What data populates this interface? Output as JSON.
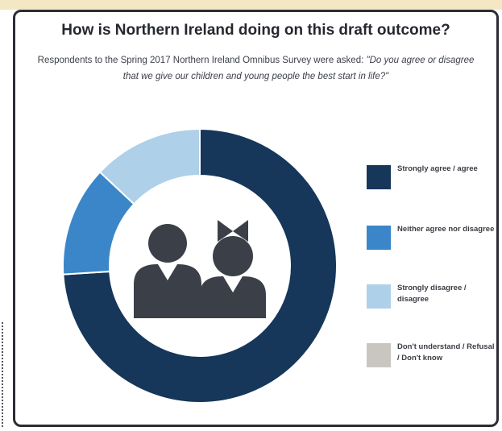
{
  "title": "How is Northern Ireland doing on this draft outcome?",
  "subtitle_intro": "Respondents to the Spring 2017 Northern Ireland Omnibus Survey were asked:",
  "subtitle_question": "\"Do you agree or disagree that we give our children and young people the best start in life?\"",
  "colors": {
    "strongly_agree": "#16365a",
    "neither": "#3a86c8",
    "disagree": "#aed0e8",
    "dont_know": "#c9c6c1",
    "icon": "#3b3f47",
    "frame": "#2a2d33"
  },
  "icons": [
    "boy-figure-icon",
    "girl-figure-icon"
  ],
  "chart_data": {
    "type": "pie",
    "style": "donut",
    "categories": [
      "Strongly agree / agree",
      "Neither agree nor disagree",
      "Strongly disagree / disagree",
      "Don't understand / Refusal / Don't know"
    ],
    "values": [
      74,
      13,
      13,
      0
    ],
    "legend_position": "right"
  }
}
